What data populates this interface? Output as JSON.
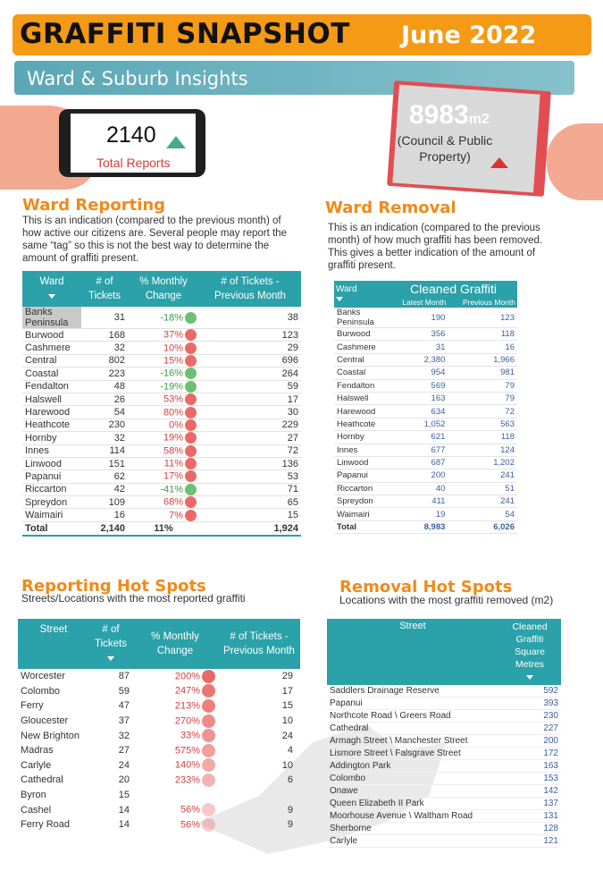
{
  "header": {
    "title": "GRAFFITI SNAPSHOT",
    "date": "June 2022",
    "subtitle": "Ward & Suburb Insights"
  },
  "phone": {
    "total_reports": "2140",
    "total_reports_label": "Total Reports",
    "trend_icon": "triangle-up-icon"
  },
  "removal": {
    "area_value": "8983",
    "area_unit": "m2",
    "area_label": "(Council & Public Property)",
    "trend_icon": "triangle-up-icon"
  },
  "ward_reporting": {
    "title": "Ward Reporting",
    "description": "This is an indication (compared to the previous month) of how active our citizens are. Several people may report the same “tag” so this is not the best way to determine the amount of graffiti present.",
    "columns": [
      "Ward",
      "# of Tickets",
      "% Monthly Change",
      "# of Tickets - Previous Month"
    ],
    "rows": [
      {
        "ward": "Banks Peninsula",
        "tickets": "31",
        "change": "-18%",
        "status": "green",
        "prev": "38"
      },
      {
        "ward": "Burwood",
        "tickets": "168",
        "change": "37%",
        "status": "red",
        "prev": "123"
      },
      {
        "ward": "Cashmere",
        "tickets": "32",
        "change": "10%",
        "status": "red",
        "prev": "29"
      },
      {
        "ward": "Central",
        "tickets": "802",
        "change": "15%",
        "status": "red",
        "prev": "696"
      },
      {
        "ward": "Coastal",
        "tickets": "223",
        "change": "-16%",
        "status": "green",
        "prev": "264"
      },
      {
        "ward": "Fendalton",
        "tickets": "48",
        "change": "-19%",
        "status": "green",
        "prev": "59"
      },
      {
        "ward": "Halswell",
        "tickets": "26",
        "change": "53%",
        "status": "red",
        "prev": "17"
      },
      {
        "ward": "Harewood",
        "tickets": "54",
        "change": "80%",
        "status": "red",
        "prev": "30"
      },
      {
        "ward": "Heathcote",
        "tickets": "230",
        "change": "0%",
        "status": "red",
        "prev": "229"
      },
      {
        "ward": "Hornby",
        "tickets": "32",
        "change": "19%",
        "status": "red",
        "prev": "27"
      },
      {
        "ward": "Innes",
        "tickets": "114",
        "change": "58%",
        "status": "red",
        "prev": "72"
      },
      {
        "ward": "Linwood",
        "tickets": "151",
        "change": "11%",
        "status": "red",
        "prev": "136"
      },
      {
        "ward": "Papanui",
        "tickets": "62",
        "change": "17%",
        "status": "red",
        "prev": "53"
      },
      {
        "ward": "Riccarton",
        "tickets": "42",
        "change": "-41%",
        "status": "green",
        "prev": "71"
      },
      {
        "ward": "Spreydon",
        "tickets": "109",
        "change": "68%",
        "status": "red",
        "prev": "65"
      },
      {
        "ward": "Waimairi",
        "tickets": "16",
        "change": "7%",
        "status": "red",
        "prev": "15"
      }
    ],
    "total": {
      "ward": "Total",
      "tickets": "2,140",
      "change": "11%",
      "prev": "1,924"
    }
  },
  "ward_removal": {
    "title": "Ward Removal",
    "description": "This is an indication (compared to the previous month) of how much graffiti has been removed. This gives a better indication of the amount of graffiti present.",
    "columns": [
      "Ward",
      "Cleaned Graffiti",
      "Latest Month",
      "Previous Month"
    ],
    "rows": [
      {
        "ward": "Banks Peninsula",
        "latest": "190",
        "prev": "123"
      },
      {
        "ward": "Burwood",
        "latest": "356",
        "prev": "118"
      },
      {
        "ward": "Cashmere",
        "latest": "31",
        "prev": "16"
      },
      {
        "ward": "Central",
        "latest": "2,380",
        "prev": "1,966"
      },
      {
        "ward": "Coastal",
        "latest": "954",
        "prev": "981"
      },
      {
        "ward": "Fendalton",
        "latest": "569",
        "prev": "79"
      },
      {
        "ward": "Halswell",
        "latest": "163",
        "prev": "79"
      },
      {
        "ward": "Harewood",
        "latest": "634",
        "prev": "72"
      },
      {
        "ward": "Heathcote",
        "latest": "1,052",
        "prev": "563"
      },
      {
        "ward": "Hornby",
        "latest": "621",
        "prev": "118"
      },
      {
        "ward": "Innes",
        "latest": "677",
        "prev": "124"
      },
      {
        "ward": "Linwood",
        "latest": "687",
        "prev": "1,202"
      },
      {
        "ward": "Papanui",
        "latest": "200",
        "prev": "241"
      },
      {
        "ward": "Riccarton",
        "latest": "40",
        "prev": "51"
      },
      {
        "ward": "Spreydon",
        "latest": "411",
        "prev": "241"
      },
      {
        "ward": "Waimairi",
        "latest": "19",
        "prev": "54"
      }
    ],
    "total": {
      "ward": "Total",
      "latest": "8,983",
      "prev": "6,026"
    }
  },
  "reporting_hotspots": {
    "title": "Reporting Hot Spots",
    "description": "Streets/Locations  with the most reported graffiti",
    "columns": [
      "Street",
      "# of Tickets",
      "% Monthly Change",
      "# of Tickets - Previous Month"
    ],
    "rows": [
      {
        "street": "Worcester",
        "tickets": "87",
        "change": "200%",
        "prev": "29"
      },
      {
        "street": "Colombo",
        "tickets": "59",
        "change": "247%",
        "prev": "17"
      },
      {
        "street": "Ferry",
        "tickets": "47",
        "change": "213%",
        "prev": "15"
      },
      {
        "street": "Gloucester",
        "tickets": "37",
        "change": "270%",
        "prev": "10"
      },
      {
        "street": "New Brighton",
        "tickets": "32",
        "change": "33%",
        "prev": "24"
      },
      {
        "street": "Madras",
        "tickets": "27",
        "change": "575%",
        "prev": "4"
      },
      {
        "street": "Carlyle",
        "tickets": "24",
        "change": "140%",
        "prev": "10"
      },
      {
        "street": "Cathedral",
        "tickets": "20",
        "change": "233%",
        "prev": "6"
      },
      {
        "street": "Byron",
        "tickets": "15",
        "change": "",
        "prev": ""
      },
      {
        "street": "Cashel",
        "tickets": "14",
        "change": "56%",
        "prev": "9"
      },
      {
        "street": "Ferry Road",
        "tickets": "14",
        "change": "56%",
        "prev": "9"
      }
    ]
  },
  "removal_hotspots": {
    "title": "Removal Hot Spots",
    "description": "Locations  with the most graffiti removed (m2)",
    "columns": [
      "Street",
      "Cleaned Graffiti Square Metres"
    ],
    "rows": [
      {
        "street": "Saddlers Drainage Reserve",
        "value": "592"
      },
      {
        "street": "Papanui",
        "value": "393"
      },
      {
        "street": "Northcote Road \\ Greers Road",
        "value": "230"
      },
      {
        "street": "Cathedral",
        "value": "227"
      },
      {
        "street": "Armagh Street \\ Manchester Street",
        "value": "200"
      },
      {
        "street": "Lismore Street \\ Falsgrave Street",
        "value": "172"
      },
      {
        "street": "Addington Park",
        "value": "163"
      },
      {
        "street": "Colombo",
        "value": "153"
      },
      {
        "street": "Onawe",
        "value": "142"
      },
      {
        "street": "Queen Elizabeth II Park",
        "value": "137"
      },
      {
        "street": "Moorhouse Avenue \\ Waltham Road",
        "value": "131"
      },
      {
        "street": "Sherborne",
        "value": "128"
      },
      {
        "street": "Carlyle",
        "value": "121"
      }
    ]
  },
  "colors": {
    "accent_orange": "#f59a14",
    "teal": "#2ba1a9",
    "red_status": "#ea6a68",
    "green_status": "#6dbf73"
  }
}
